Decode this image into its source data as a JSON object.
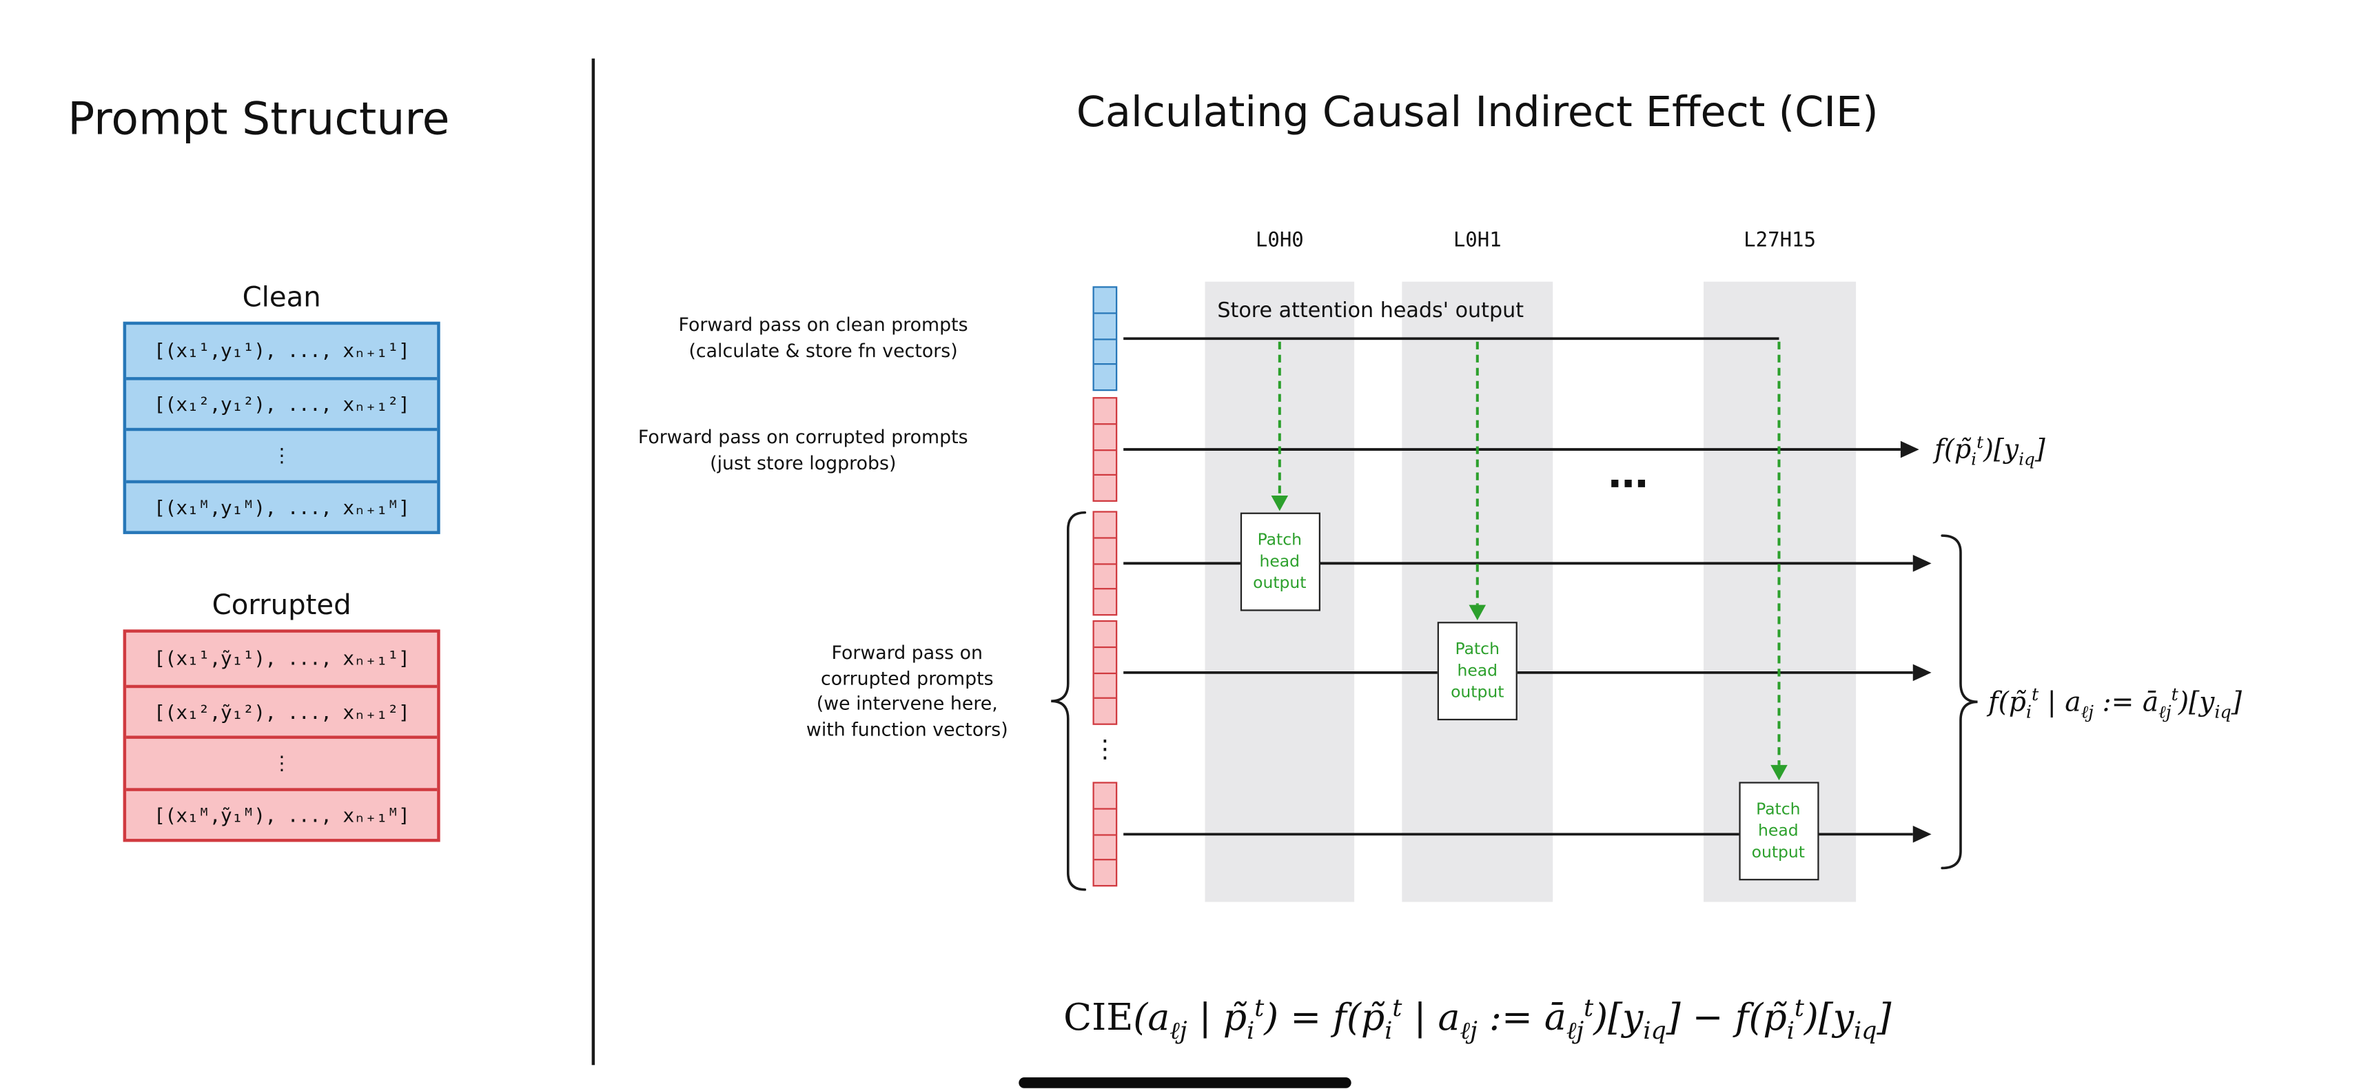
{
  "left_panel": {
    "title": "Prompt Structure",
    "clean": {
      "label": "Clean",
      "rows": [
        "[(x₁¹,y₁¹), ..., xₙ₊₁¹]",
        "[(x₁²,y₁²), ..., xₙ₊₁²]",
        "⋮",
        "[(x₁ᴹ,y₁ᴹ), ..., xₙ₊₁ᴹ]"
      ]
    },
    "corrupted": {
      "label": "Corrupted",
      "rows": [
        "[(x₁¹,ỹ₁¹), ..., xₙ₊₁¹]",
        "[(x₁²,ỹ₁²), ..., xₙ₊₁²]",
        "⋮",
        "[(x₁ᴹ,ỹ₁ᴹ), ..., xₙ₊₁ᴹ]"
      ]
    }
  },
  "right_panel": {
    "title": "Calculating Causal Indirect Effect (CIE)",
    "column_headers": [
      "L0H0",
      "L0H1",
      "L27H15"
    ],
    "labels": {
      "clean_pass": "Forward pass on clean prompts\n(calculate & store fn vectors)",
      "corrupted_pass": "Forward pass on corrupted prompts\n(just store logprobs)",
      "intervene_pass": "Forward pass on\ncorrupted prompts\n(we intervene here,\nwith function vectors)",
      "store_output": "Store attention heads' output",
      "patch_box": "Patch\nhead\noutput",
      "ellipsis": "⋯",
      "vdots": "⋮"
    },
    "formulas": {
      "corrupted_output_html": "f(p̃<sub>i</sub><sup>t</sup>)[y<sub>iq</sub>]",
      "intervened_output_html": "f(p̃<sub>i</sub><sup>t</sup> | a<sub>ℓj</sub> := ā<sub>ℓj</sub><sup>t</sup>)[y<sub>iq</sub>]",
      "cie_html": "<span class='rm'>CIE</span>(a<sub>ℓj</sub> | p̃<sub>i</sub><sup>t</sup>) = f(p̃<sub>i</sub><sup>t</sup> | a<sub>ℓj</sub> := ā<sub>ℓj</sub><sup>t</sup>)[y<sub>iq</sub>] − f(p̃<sub>i</sub><sup>t</sup>)[y<sub>iq</sub>]"
    }
  },
  "colors": {
    "clean_fill": "#aad4f2",
    "clean_border": "#2777b8",
    "corrupted_fill": "#f9c2c5",
    "corrupted_border": "#d03a40",
    "column_band": "#e8e8ea",
    "patch_green": "#2ca02c"
  }
}
